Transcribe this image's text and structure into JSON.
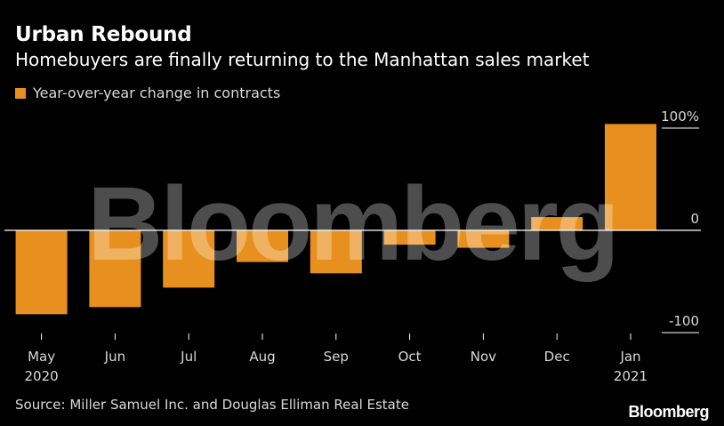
{
  "header": {
    "title": "Urban Rebound",
    "subtitle": "Homebuyers are finally returning to the Manhattan sales market"
  },
  "footer": {
    "source": "Source: Miller Samuel Inc. and Douglas Elliman Real Estate",
    "brand": "Bloomberg"
  },
  "watermark": "Bloomberg",
  "colors": {
    "bar": "#e8901f",
    "background": "#000000",
    "zero_line": "#ffffff"
  },
  "chart_data": {
    "type": "bar",
    "title": "Urban Rebound",
    "subtitle": "Homebuyers are finally returning to the Manhattan sales market",
    "categories": [
      "May 2020",
      "Jun",
      "Jul",
      "Aug",
      "Sep",
      "Oct",
      "Nov",
      "Dec",
      "Jan 2021"
    ],
    "x_tick_labels": [
      [
        "May",
        "2020"
      ],
      [
        "Jun"
      ],
      [
        "Jul"
      ],
      [
        "Aug"
      ],
      [
        "Sep"
      ],
      [
        "Oct"
      ],
      [
        "Nov"
      ],
      [
        "Dec"
      ],
      [
        "Jan",
        "2021"
      ]
    ],
    "series": [
      {
        "name": "Year-over-year change in contracts",
        "values": [
          -82,
          -75,
          -56,
          -31,
          -42,
          -14,
          -17,
          13,
          104
        ]
      }
    ],
    "y_ticks": [
      {
        "value": 100,
        "label": "100%"
      },
      {
        "value": 0,
        "label": "0"
      },
      {
        "value": -100,
        "label": "-100"
      }
    ],
    "ylim": [
      -100,
      115
    ],
    "grid": false,
    "legend_position": "top-left",
    "y_axis_position": "right"
  }
}
